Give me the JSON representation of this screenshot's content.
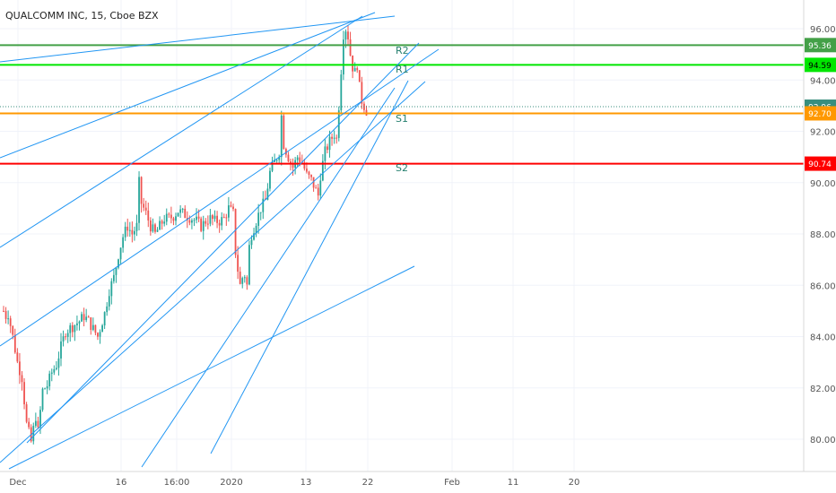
{
  "chart_data": {
    "type": "candlestick",
    "title": "QUALCOMM INC, 15, Cboe BZX",
    "y_axis": {
      "ticks": [
        80,
        82,
        84,
        86,
        88,
        90,
        92,
        94,
        96
      ],
      "tick_labels": [
        "80.00",
        "82.00",
        "84.00",
        "86.00",
        "88.00",
        "90.00",
        "92.00",
        "94.00",
        "96.00"
      ],
      "ylim": [
        78.8,
        97.6
      ]
    },
    "x_axis": {
      "tick_labels": [
        "Dec",
        "16",
        "16:00",
        "2020",
        "13",
        "22",
        "Feb",
        "11",
        "20"
      ]
    },
    "grid": true,
    "candle_colors": {
      "up": "#26a69a",
      "down": "#ef5350"
    },
    "price_path": [
      [
        0,
        85.0
      ],
      [
        1,
        84.8
      ],
      [
        2,
        84.9
      ],
      [
        4,
        84.0
      ],
      [
        6,
        83.0
      ],
      [
        8,
        82.4
      ],
      [
        10,
        80.6
      ],
      [
        12,
        79.9
      ],
      [
        14,
        80.9
      ],
      [
        15,
        80.3
      ],
      [
        17,
        81.9
      ],
      [
        19,
        82.1
      ],
      [
        21,
        82.6
      ],
      [
        23,
        82.9
      ],
      [
        25,
        83.6
      ],
      [
        27,
        84.2
      ],
      [
        30,
        84.4
      ],
      [
        33,
        84.6
      ],
      [
        35,
        84.8
      ],
      [
        37,
        84.6
      ],
      [
        39,
        84.3
      ],
      [
        41,
        84.0
      ],
      [
        42,
        84.3
      ],
      [
        44,
        84.9
      ],
      [
        46,
        85.8
      ],
      [
        48,
        86.3
      ],
      [
        50,
        87.2
      ],
      [
        52,
        87.9
      ],
      [
        54,
        88.3
      ],
      [
        56,
        88.0
      ],
      [
        58,
        88.3
      ],
      [
        59,
        90.0
      ],
      [
        60,
        89.2
      ],
      [
        62,
        88.8
      ],
      [
        64,
        88.3
      ],
      [
        66,
        88.0
      ],
      [
        68,
        88.3
      ],
      [
        70,
        88.6
      ],
      [
        72,
        88.6
      ],
      [
        74,
        88.7
      ],
      [
        76,
        88.9
      ],
      [
        78,
        88.8
      ],
      [
        80,
        88.7
      ],
      [
        82,
        88.6
      ],
      [
        84,
        88.5
      ],
      [
        86,
        88.3
      ],
      [
        88,
        88.5
      ],
      [
        90,
        88.6
      ],
      [
        92,
        88.5
      ],
      [
        94,
        88.5
      ],
      [
        96,
        88.6
      ],
      [
        98,
        89.0
      ],
      [
        100,
        88.8
      ],
      [
        101,
        87.3
      ],
      [
        102,
        86.6
      ],
      [
        103,
        86.0
      ],
      [
        104,
        86.3
      ],
      [
        105,
        86.4
      ],
      [
        106,
        86.0
      ],
      [
        107,
        87.5
      ],
      [
        108,
        88.0
      ],
      [
        110,
        88.5
      ],
      [
        112,
        89.0
      ],
      [
        114,
        89.3
      ],
      [
        116,
        90.4
      ],
      [
        118,
        90.8
      ],
      [
        120,
        91.2
      ],
      [
        121,
        92.6
      ],
      [
        122,
        91.5
      ],
      [
        124,
        91.0
      ],
      [
        126,
        90.6
      ],
      [
        128,
        91.0
      ],
      [
        130,
        90.8
      ],
      [
        132,
        90.3
      ],
      [
        134,
        90.1
      ],
      [
        136,
        89.7
      ],
      [
        137,
        89.5
      ],
      [
        138,
        90.3
      ],
      [
        140,
        91.2
      ],
      [
        142,
        91.6
      ],
      [
        144,
        91.9
      ],
      [
        145,
        91.7
      ],
      [
        146,
        93.0
      ],
      [
        147,
        94.4
      ],
      [
        148,
        95.8
      ],
      [
        149,
        96.0
      ],
      [
        150,
        95.7
      ],
      [
        151,
        95.0
      ],
      [
        152,
        94.5
      ],
      [
        153,
        94.3
      ],
      [
        154,
        94.6
      ],
      [
        155,
        93.7
      ],
      [
        156,
        93.2
      ],
      [
        158,
        92.8
      ]
    ],
    "levels": [
      {
        "value": 95.36,
        "label": "95.36",
        "color": "#43a047",
        "pivot": "R2"
      },
      {
        "value": 94.59,
        "label": "94.59",
        "color": "#00e600",
        "pivot": "R1"
      },
      {
        "value": 92.96,
        "label": "92.96",
        "color": "#388e7e",
        "pivot": ""
      },
      {
        "value": 92.7,
        "label": "92.70",
        "color": "#ff9800",
        "pivot": "S1"
      },
      {
        "value": 90.74,
        "label": "90.74",
        "color": "#ff0000",
        "pivot": "S2"
      }
    ],
    "gann_fan_color": "#2196f3"
  }
}
